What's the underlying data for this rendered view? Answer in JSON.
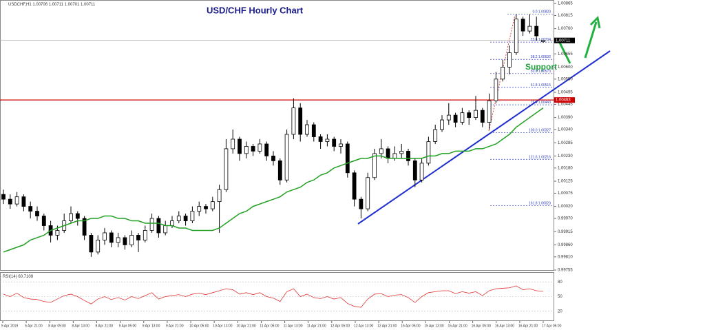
{
  "chart_data": {
    "type": "candlestick",
    "title": "USD/CHF Hourly Chart",
    "symbol": "USDCHF,H1",
    "annotation": "Support",
    "ohlc": [
      [
        1.0007,
        1.0009,
        1.0003,
        1.0005
      ],
      [
        1.0005,
        1.0007,
        1.0001,
        1.0003
      ],
      [
        1.0003,
        1.0008,
        1.0002,
        1.0006
      ],
      [
        1.0006,
        1.0007,
        1.0,
        1.0002
      ],
      [
        1.0002,
        1.0004,
        0.9997,
        1.0
      ],
      [
        1.0,
        1.0002,
        0.9996,
        0.9998
      ],
      [
        0.9998,
        0.9999,
        0.9992,
        0.9994
      ],
      [
        0.9994,
        0.9996,
        0.9987,
        0.999
      ],
      [
        0.999,
        0.9994,
        0.9988,
        0.9992
      ],
      [
        0.9992,
        0.9999,
        0.9991,
        0.9996
      ],
      [
        0.9996,
        1.0002,
        0.9995,
        0.9999
      ],
      [
        0.9999,
        1.0,
        0.9994,
        0.9997
      ],
      [
        0.9997,
        0.9998,
        0.9988,
        0.999
      ],
      [
        0.999,
        0.9991,
        0.9981,
        0.9983
      ],
      [
        0.9983,
        0.999,
        0.9982,
        0.9988
      ],
      [
        0.9988,
        0.9993,
        0.9986,
        0.9991
      ],
      [
        0.9991,
        0.9992,
        0.9985,
        0.9987
      ],
      [
        0.9987,
        0.9991,
        0.9985,
        0.9989
      ],
      [
        0.9989,
        0.999,
        0.9984,
        0.9986
      ],
      [
        0.9986,
        0.9992,
        0.9985,
        0.999
      ],
      [
        0.999,
        0.9991,
        0.9983,
        0.9988
      ],
      [
        0.9988,
        0.9994,
        0.9987,
        0.9992
      ],
      [
        0.9992,
        0.9999,
        0.9991,
        0.9997
      ],
      [
        0.9997,
        0.9998,
        0.9989,
        0.9991
      ],
      [
        0.9991,
        0.9996,
        0.999,
        0.9994
      ],
      [
        0.9994,
        0.9998,
        0.9993,
        0.9996
      ],
      [
        0.9996,
        1.0,
        0.9995,
        0.9998
      ],
      [
        0.9998,
        0.9999,
        0.9994,
        0.9996
      ],
      [
        0.9996,
        1.0002,
        0.9995,
        1.0
      ],
      [
        1.0,
        1.0004,
        0.9998,
        1.0002
      ],
      [
        1.0002,
        1.0003,
        0.9999,
        1.0001
      ],
      [
        1.0001,
        1.0006,
        1.0,
        1.0004
      ],
      [
        1.0004,
        1.0011,
        0.9991,
        1.0009
      ],
      [
        1.0009,
        1.003,
        1.0008,
        1.0026
      ],
      [
        1.0026,
        1.0034,
        1.0024,
        1.003
      ],
      [
        1.003,
        1.0031,
        1.0021,
        1.0024
      ],
      [
        1.0024,
        1.0029,
        1.0022,
        1.0027
      ],
      [
        1.0027,
        1.0028,
        1.0023,
        1.0025
      ],
      [
        1.0025,
        1.003,
        1.0024,
        1.0028
      ],
      [
        1.0028,
        1.0029,
        1.0021,
        1.0023
      ],
      [
        1.0023,
        1.0025,
        1.0019,
        1.0021
      ],
      [
        1.0021,
        1.0022,
        1.0011,
        1.0013
      ],
      [
        1.0013,
        1.0034,
        1.0012,
        1.0032
      ],
      [
        1.0032,
        1.0047,
        1.003,
        1.0043
      ],
      [
        1.0043,
        1.0045,
        1.0029,
        1.0032
      ],
      [
        1.0032,
        1.0038,
        1.0031,
        1.0036
      ],
      [
        1.0036,
        1.0037,
        1.0029,
        1.0031
      ],
      [
        1.0031,
        1.0032,
        1.0026,
        1.0029
      ],
      [
        1.0029,
        1.0032,
        1.0027,
        1.003
      ],
      [
        1.003,
        1.0031,
        1.0025,
        1.0027
      ],
      [
        1.0027,
        1.003,
        1.0024,
        1.0028
      ],
      [
        1.0028,
        1.0029,
        1.0014,
        1.0016
      ],
      [
        1.0016,
        1.0017,
        1.0002,
        1.0005
      ],
      [
        1.0005,
        1.0006,
        0.9997,
        1.0001
      ],
      [
        1.0001,
        1.0016,
        1.0,
        1.0014
      ],
      [
        1.0014,
        1.0026,
        1.0013,
        1.0024
      ],
      [
        1.0024,
        1.003,
        1.0022,
        1.0026
      ],
      [
        1.0026,
        1.0027,
        1.002,
        1.0022
      ],
      [
        1.0022,
        1.0027,
        1.0021,
        1.0024
      ],
      [
        1.0024,
        1.0028,
        1.0022,
        1.0025
      ],
      [
        1.0025,
        1.0026,
        1.0019,
        1.0021
      ],
      [
        1.0021,
        1.0022,
        1.001,
        1.0013
      ],
      [
        1.0013,
        1.0022,
        1.0012,
        1.002
      ],
      [
        1.002,
        1.0031,
        1.0019,
        1.0029
      ],
      [
        1.0029,
        1.0036,
        1.0028,
        1.0034
      ],
      [
        1.0034,
        1.004,
        1.0033,
        1.0038
      ],
      [
        1.0038,
        1.0045,
        1.0036,
        1.004
      ],
      [
        1.004,
        1.0041,
        1.0035,
        1.0037
      ],
      [
        1.0037,
        1.0043,
        1.0036,
        1.0041
      ],
      [
        1.0041,
        1.0042,
        1.0036,
        1.0039
      ],
      [
        1.0039,
        1.0048,
        1.0038,
        1.0042
      ],
      [
        1.0042,
        1.0043,
        1.0035,
        1.0037
      ],
      [
        1.0037,
        1.0049,
        1.0034,
        1.0046
      ],
      [
        1.0046,
        1.0058,
        1.0045,
        1.0055
      ],
      [
        1.0055,
        1.0063,
        1.0054,
        1.006
      ],
      [
        1.006,
        1.0069,
        1.0057,
        1.0066
      ],
      [
        1.0066,
        1.0082,
        1.0065,
        1.008
      ],
      [
        1.008,
        1.0081,
        1.0073,
        1.0075
      ],
      [
        1.0075,
        1.0082,
        1.0074,
        1.0077
      ],
      [
        1.0077,
        1.0081,
        1.0071,
        1.0073
      ],
      [
        1.00706,
        1.00711,
        1.00701,
        1.00711
      ]
    ],
    "ma": {
      "color": "#22a022",
      "values": [
        0.9983,
        0.9984,
        0.9985,
        0.9986,
        0.9988,
        0.9989,
        0.999,
        0.9992,
        0.9993,
        0.9994,
        0.9995,
        0.9996,
        0.9996,
        0.9997,
        0.9997,
        0.9998,
        0.9998,
        0.9997,
        0.9997,
        0.9996,
        0.9996,
        0.9995,
        0.9995,
        0.9995,
        0.9994,
        0.9994,
        0.9993,
        0.9993,
        0.9992,
        0.9992,
        0.9992,
        0.9992,
        0.9993,
        0.9995,
        0.9997,
        0.9999,
        1.0,
        1.0002,
        1.0003,
        1.0004,
        1.0005,
        1.0006,
        1.0008,
        1.0009,
        1.001,
        1.0012,
        1.0013,
        1.0015,
        1.0016,
        1.0018,
        1.0019,
        1.002,
        1.0021,
        1.0022,
        1.0022,
        1.0023,
        1.0023,
        1.0022,
        1.0022,
        1.0022,
        1.0022,
        1.0022,
        1.0022,
        1.0023,
        1.0023,
        1.0024,
        1.0024,
        1.0025,
        1.0025,
        1.0025,
        1.0026,
        1.0026,
        1.0027,
        1.0028,
        1.003,
        1.0032,
        1.0035,
        1.0037,
        1.0039,
        1.0041,
        1.0043
      ]
    },
    "ylim": [
      0.99755,
      1.00865
    ],
    "yticks": [
      1.00865,
      1.00815,
      {
        "value": 1.0076,
        "label": "1.00760"
      },
      1.00655,
      {
        "value": 1.006,
        "label": "1.00600"
      },
      {
        "value": 1.0055,
        "label": "1.00550"
      },
      1.00495,
      1.00445,
      {
        "value": 1.0039,
        "label": "1.00390"
      },
      {
        "value": 1.0034,
        "label": "1.00340"
      },
      1.00285,
      {
        "value": 1.0023,
        "label": "1.00230"
      },
      {
        "value": 1.0018,
        "label": "1.00180"
      },
      1.00125,
      1.00075,
      {
        "value": 1.0002,
        "label": "1.00020"
      },
      {
        "value": 0.9997,
        "label": "0.99970"
      },
      0.99915,
      {
        "value": 0.9986,
        "label": "0.99860"
      },
      {
        "value": 0.9981,
        "label": "0.99810"
      },
      0.99755
    ],
    "resistance": {
      "value": 1.00463,
      "color": "#d00000"
    },
    "fib": [
      {
        "level": "0.0",
        "price": 1.0082,
        "price_label": "1.00820"
      },
      {
        "level": "23.6",
        "price": 1.00704
      },
      {
        "level": "38.2",
        "price": 1.00632
      },
      {
        "level": "50.0",
        "price": 1.00573
      },
      {
        "level": "61.8",
        "price": 1.00515
      },
      {
        "level": "76.4",
        "price": 1.00443
      },
      {
        "level": "100.0",
        "price": 1.00327
      },
      {
        "level": "121.6",
        "price": 1.00216
      },
      {
        "level": "161.8",
        "price": 1.00023
      }
    ],
    "x_labels": [
      "5 Apr 2019",
      "5 Apr 21:00",
      "8 Apr 05:00",
      "8 Apr 13:00",
      "8 Apr 21:00",
      "9 Apr 05:00",
      "9 Apr 13:00",
      "9 Apr 21:00",
      "10 Apr 05:00",
      "10 Apr 13:00",
      "10 Apr 21:00",
      "11 Apr 05:00",
      "11 Apr 13:00",
      "11 Apr 21:00",
      "12 Apr 05:00",
      "12 Apr 13:00",
      "12 Apr 21:00",
      "15 Apr 05:00",
      "15 Apr 13:00",
      "15 Apr 21:00",
      "16 Apr 05:00",
      "16 Apr 13:00",
      "16 Apr 21:00",
      "17 Apr 05:00"
    ],
    "rsi": {
      "label": "RSI(14)",
      "color": "#e03030",
      "ylim": [
        0,
        100
      ],
      "yticks": [
        80,
        50,
        20
      ],
      "values": [
        55,
        50,
        57,
        48,
        45,
        44,
        40,
        38,
        45,
        52,
        55,
        50,
        42,
        35,
        45,
        50,
        44,
        48,
        43,
        50,
        46,
        52,
        58,
        45,
        50,
        52,
        54,
        50,
        55,
        57,
        54,
        58,
        62,
        66,
        64,
        55,
        58,
        54,
        58,
        50,
        47,
        40,
        60,
        66,
        50,
        55,
        48,
        46,
        50,
        45,
        48,
        36,
        30,
        28,
        45,
        55,
        56,
        50,
        53,
        54,
        48,
        38,
        50,
        58,
        60,
        62,
        62,
        56,
        60,
        57,
        60,
        52,
        62,
        66,
        67,
        68,
        72,
        64,
        66,
        62,
        60.7109
      ]
    }
  }
}
